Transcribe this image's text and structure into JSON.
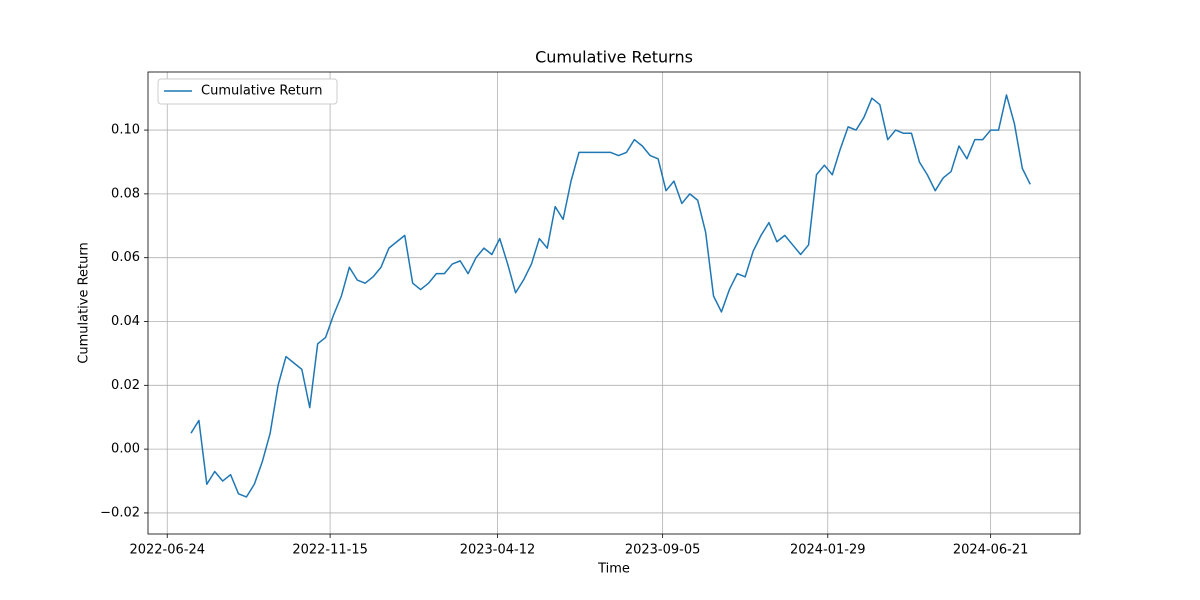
{
  "chart_data": {
    "type": "line",
    "title": "Cumulative Returns",
    "x_label": "Time",
    "y_label": "Cumulative Return",
    "x": [
      "2022-07-15",
      "2022-07-22",
      "2022-07-29",
      "2022-08-05",
      "2022-08-12",
      "2022-08-19",
      "2022-08-26",
      "2022-09-02",
      "2022-09-09",
      "2022-09-16",
      "2022-09-23",
      "2022-09-30",
      "2022-10-07",
      "2022-10-14",
      "2022-10-21",
      "2022-10-28",
      "2022-11-04",
      "2022-11-11",
      "2022-11-18",
      "2022-11-25",
      "2022-12-02",
      "2022-12-09",
      "2022-12-16",
      "2022-12-23",
      "2022-12-30",
      "2023-01-06",
      "2023-01-13",
      "2023-01-20",
      "2023-01-27",
      "2023-02-03",
      "2023-02-10",
      "2023-02-17",
      "2023-02-24",
      "2023-03-03",
      "2023-03-10",
      "2023-03-17",
      "2023-03-24",
      "2023-03-31",
      "2023-04-07",
      "2023-04-14",
      "2023-04-21",
      "2023-04-28",
      "2023-05-05",
      "2023-05-12",
      "2023-05-19",
      "2023-05-26",
      "2023-06-02",
      "2023-06-09",
      "2023-06-16",
      "2023-06-23",
      "2023-06-30",
      "2023-07-07",
      "2023-07-14",
      "2023-07-21",
      "2023-07-28",
      "2023-08-04",
      "2023-08-11",
      "2023-08-18",
      "2023-08-25",
      "2023-09-01",
      "2023-09-08",
      "2023-09-15",
      "2023-09-22",
      "2023-09-29",
      "2023-10-06",
      "2023-10-13",
      "2023-10-20",
      "2023-10-27",
      "2023-11-03",
      "2023-11-10",
      "2023-11-17",
      "2023-11-24",
      "2023-12-01",
      "2023-12-08",
      "2023-12-15",
      "2023-12-22",
      "2023-12-29",
      "2024-01-05",
      "2024-01-12",
      "2024-01-19",
      "2024-01-26",
      "2024-02-02",
      "2024-02-09",
      "2024-02-16",
      "2024-02-23",
      "2024-03-01",
      "2024-03-08",
      "2024-03-15",
      "2024-03-22",
      "2024-03-29",
      "2024-04-05",
      "2024-04-12",
      "2024-04-19",
      "2024-04-26",
      "2024-05-03",
      "2024-05-10",
      "2024-05-17",
      "2024-05-24",
      "2024-05-31",
      "2024-06-07",
      "2024-06-14",
      "2024-06-21",
      "2024-06-28",
      "2024-07-05",
      "2024-07-12",
      "2024-07-19",
      "2024-07-26"
    ],
    "series": [
      {
        "name": "Cumulative Return",
        "color": "#1f77b4",
        "values": [
          0.005,
          0.009,
          -0.011,
          -0.007,
          -0.01,
          -0.008,
          -0.014,
          -0.015,
          -0.011,
          -0.004,
          0.005,
          0.02,
          0.029,
          0.027,
          0.025,
          0.013,
          0.033,
          0.035,
          0.042,
          0.048,
          0.057,
          0.053,
          0.052,
          0.054,
          0.057,
          0.063,
          0.065,
          0.067,
          0.052,
          0.05,
          0.052,
          0.055,
          0.055,
          0.058,
          0.059,
          0.055,
          0.06,
          0.063,
          0.061,
          0.066,
          0.058,
          0.049,
          0.053,
          0.058,
          0.066,
          0.063,
          0.076,
          0.072,
          0.084,
          0.093,
          0.093,
          0.093,
          0.093,
          0.093,
          0.092,
          0.093,
          0.097,
          0.095,
          0.092,
          0.091,
          0.081,
          0.084,
          0.077,
          0.08,
          0.078,
          0.068,
          0.048,
          0.043,
          0.05,
          0.055,
          0.054,
          0.062,
          0.067,
          0.071,
          0.065,
          0.067,
          0.064,
          0.061,
          0.064,
          0.086,
          0.089,
          0.086,
          0.094,
          0.101,
          0.1,
          0.104,
          0.11,
          0.108,
          0.097,
          0.1,
          0.099,
          0.099,
          0.09,
          0.086,
          0.081,
          0.085,
          0.087,
          0.095,
          0.091,
          0.097,
          0.097,
          0.1,
          0.1,
          0.111,
          0.102,
          0.088,
          0.083
        ]
      }
    ],
    "xlim": [
      "2022-06-07",
      "2024-09-08"
    ],
    "xticks": [
      "2022-06-24",
      "2022-11-15",
      "2023-04-12",
      "2023-09-05",
      "2024-01-29",
      "2024-06-21"
    ],
    "ylim": [
      -0.0266,
      0.1182
    ],
    "yticks": [
      {
        "value": -0.02,
        "label": "−0.02"
      },
      {
        "value": 0,
        "label": "0.00"
      },
      {
        "value": 0.02,
        "label": "0.02"
      },
      {
        "value": 0.04,
        "label": "0.04"
      },
      {
        "value": 0.06,
        "label": "0.06"
      },
      {
        "value": 0.08,
        "label": "0.08"
      },
      {
        "value": 0.1,
        "label": "0.10"
      }
    ],
    "grid": true,
    "legend": "upper left"
  }
}
